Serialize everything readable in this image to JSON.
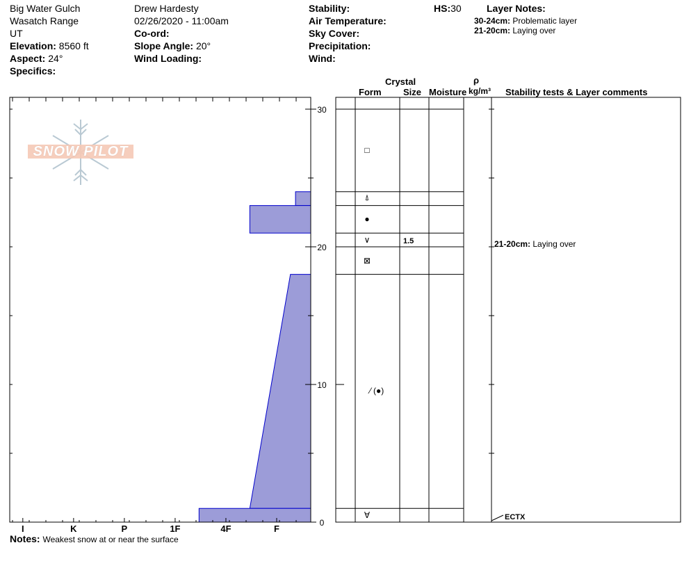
{
  "meta": {
    "location": "Big Water Gulch",
    "range": "Wasatch Range",
    "state": "UT",
    "elevation_label": "Elevation:",
    "elevation": "8560 ft",
    "aspect_label": "Aspect:",
    "aspect": "24°",
    "specifics_label": "Specifics:",
    "observer": "Drew Hardesty",
    "datetime": "02/26/2020 - 11:00am",
    "coord_label": "Co-ord:",
    "slope_label": "Slope Angle:",
    "slope": "20°",
    "wind_loading_label": "Wind Loading:",
    "stability_label": "Stability:",
    "air_temp_label": "Air Temperature:",
    "sky_label": "Sky Cover:",
    "precip_label": "Precipitation:",
    "wind_label": "Wind:",
    "hs_label": "HS:",
    "hs": "30"
  },
  "layer_notes": {
    "title": "Layer Notes:",
    "items": [
      {
        "range": "30-24cm:",
        "text": "Problematic layer"
      },
      {
        "range": "21-20cm:",
        "text": "Laying over"
      }
    ]
  },
  "columns": {
    "crystal": "Crystal",
    "form": "Form",
    "size": "Size",
    "moisture": "Moisture",
    "rho": "ρ",
    "density_unit": "kg/m³",
    "comments": "Stability tests & Layer comments"
  },
  "logo_text": "SNOW PILOT",
  "comment": {
    "range": "21-20cm:",
    "text": "Laying over"
  },
  "test_label": "ECTX",
  "size_value": "1.5",
  "notes": {
    "label": "Notes:",
    "text": "Weakest snow at or near the surface"
  },
  "chart_data": {
    "type": "area",
    "title": "",
    "xlabel": "",
    "ylabel": "",
    "x_categories": [
      "I",
      "K",
      "P",
      "1F",
      "4F",
      "F"
    ],
    "x_hardness_index": {
      "F": 0,
      "4F": 1,
      "1F": 2,
      "P": 3,
      "K": 4,
      "I": 5
    },
    "ylim": [
      0,
      30
    ],
    "y_ticks": [
      0,
      10,
      20,
      30
    ],
    "layers": [
      {
        "top": 30,
        "bottom": 24,
        "hardness_top": 0.0,
        "hardness_bottom": 0.0,
        "form": "square"
      },
      {
        "top": 24,
        "bottom": 23,
        "hardness_top": 0.3,
        "hardness_bottom": 0.3,
        "form": "depth-hoar-mixed"
      },
      {
        "top": 23,
        "bottom": 21,
        "hardness_top": 1.2,
        "hardness_bottom": 1.2,
        "form": "melt-freeze"
      },
      {
        "top": 21,
        "bottom": 20,
        "hardness_top": 0.0,
        "hardness_bottom": 0.0,
        "form": "depth-hoar"
      },
      {
        "top": 20,
        "bottom": 18,
        "hardness_top": 0.0,
        "hardness_bottom": 0.0,
        "form": "faceted-rounding"
      },
      {
        "top": 18,
        "bottom": 1,
        "hardness_top": 0.4,
        "hardness_bottom": 1.2,
        "form": "ice-crust-rounds"
      },
      {
        "top": 1,
        "bottom": 0,
        "hardness_top": 2.2,
        "hardness_bottom": 2.2,
        "form": "hoar"
      }
    ]
  }
}
